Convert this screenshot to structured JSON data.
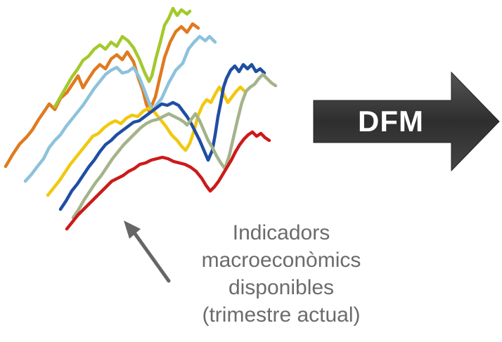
{
  "arrow": {
    "label": "DFM",
    "color": "#3a3a3a"
  },
  "caption": {
    "lines": [
      "Indicadors",
      "macroeconòmics",
      "disponibles",
      "(trimestre actual)"
    ],
    "color": "#6b6b6b"
  },
  "pointer_arrow": {
    "color": "#666666"
  },
  "series_colors": [
    "#e07a1f",
    "#a3c92c",
    "#8cc2dc",
    "#f2c80f",
    "#1f4ea3",
    "#a4b38a",
    "#cc1a1a"
  ]
}
